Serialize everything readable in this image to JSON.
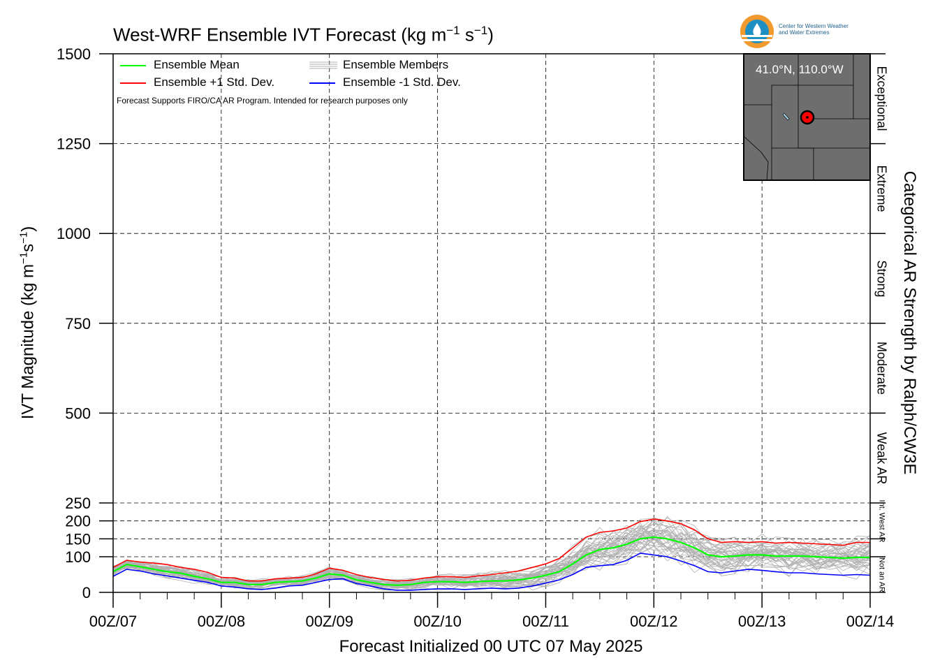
{
  "logo": {
    "name": "cw3e-logo-icon",
    "text_line1": "Center for Western Weather",
    "text_line2": "and Water Extremes"
  },
  "inset_map": {
    "location_label": "41.0°N, 110.0°W",
    "land_color": "#6e6e6e",
    "marker_color": "#ff0000"
  },
  "disclaimer": "Forecast Supports FIRO/CA AR Program. Intended for research purposes only",
  "categories": [
    {
      "label": "Exceptional",
      "range": [
        1250,
        1500
      ],
      "small": false
    },
    {
      "label": "Extreme",
      "range": [
        1000,
        1250
      ],
      "small": false
    },
    {
      "label": "Strong",
      "range": [
        750,
        1000
      ],
      "small": false
    },
    {
      "label": "Moderate",
      "range": [
        500,
        750
      ],
      "small": false
    },
    {
      "label": "Weak AR",
      "range": [
        250,
        500
      ],
      "small": false
    },
    {
      "label": "Int. West AR",
      "range": [
        150,
        250
      ],
      "small": true
    },
    {
      "label": "Not an AR",
      "range": [
        0,
        100
      ],
      "small": true
    }
  ],
  "chart_data": {
    "type": "line",
    "title": "West-WRF Ensemble IVT Forecast (kg m-1 s-1)",
    "title_main": "West-WRF Ensemble IVT Forecast (kg m",
    "title_exp1": "−1",
    "title_mid": " s",
    "title_exp2": "−1",
    "title_end": ")",
    "ylabel_main": "IVT Magnitude (kg m",
    "ylabel_exp1": "−1",
    "ylabel_mid": "s",
    "ylabel_exp2": "−1",
    "ylabel_end": ")",
    "xlabel": "Forecast Initialized 00 UTC 07 May 2025",
    "right_label": "Categorical AR Strength by Ralph/CW3E",
    "xlim": [
      0,
      168
    ],
    "ylim": [
      0,
      1500
    ],
    "grid": true,
    "legend_placement": "top-left",
    "x_ticks": [
      0,
      24,
      48,
      72,
      96,
      120,
      144,
      168
    ],
    "x_tick_labels": [
      "00Z/07",
      "00Z/08",
      "00Z/09",
      "00Z/10",
      "00Z/11",
      "00Z/12",
      "00Z/13",
      "00Z/14"
    ],
    "y_ticks": [
      0,
      100,
      150,
      200,
      250,
      500,
      750,
      1000,
      1250,
      1500
    ],
    "y_tick_labels": [
      "0",
      "100",
      "150",
      "200",
      "250",
      "500",
      "750",
      "1000",
      "1250",
      "1500"
    ],
    "x_hours": [
      0,
      3,
      6,
      9,
      12,
      15,
      18,
      21,
      24,
      27,
      30,
      33,
      36,
      39,
      42,
      45,
      48,
      51,
      54,
      57,
      60,
      63,
      66,
      69,
      72,
      75,
      78,
      81,
      84,
      87,
      90,
      93,
      96,
      99,
      102,
      105,
      108,
      111,
      114,
      117,
      120,
      123,
      126,
      129,
      132,
      135,
      138,
      141,
      144,
      147,
      150,
      153,
      156,
      159,
      162,
      165,
      168
    ],
    "series": [
      {
        "name": "Ensemble Mean",
        "color": "#00ff00",
        "values": [
          58,
          78,
          72,
          65,
          58,
          54,
          45,
          38,
          28,
          28,
          22,
          22,
          28,
          30,
          32,
          40,
          52,
          48,
          35,
          28,
          22,
          20,
          22,
          28,
          30,
          30,
          28,
          30,
          32,
          32,
          35,
          40,
          48,
          58,
          80,
          105,
          120,
          125,
          135,
          150,
          155,
          150,
          140,
          125,
          105,
          100,
          102,
          105,
          105,
          102,
          102,
          102,
          100,
          98,
          96,
          98,
          98
        ]
      },
      {
        "name": "Ensemble +1 Std. Dev.",
        "color": "#ff0000",
        "values": [
          70,
          90,
          85,
          82,
          78,
          70,
          65,
          56,
          42,
          40,
          32,
          32,
          38,
          40,
          42,
          52,
          68,
          62,
          50,
          42,
          36,
          32,
          34,
          40,
          44,
          44,
          42,
          46,
          50,
          55,
          60,
          70,
          80,
          95,
          125,
          155,
          168,
          172,
          180,
          198,
          205,
          200,
          192,
          175,
          150,
          140,
          142,
          140,
          142,
          138,
          140,
          138,
          136,
          134,
          132,
          140,
          140
        ]
      },
      {
        "name": "Ensemble -1 Std. Dev.",
        "color": "#0000ff",
        "values": [
          45,
          65,
          60,
          52,
          46,
          40,
          34,
          28,
          18,
          15,
          10,
          8,
          12,
          18,
          20,
          28,
          36,
          38,
          25,
          18,
          10,
          6,
          6,
          8,
          10,
          10,
          8,
          10,
          12,
          10,
          12,
          18,
          26,
          35,
          50,
          70,
          75,
          78,
          90,
          110,
          105,
          100,
          88,
          75,
          58,
          55,
          60,
          65,
          62,
          58,
          55,
          55,
          52,
          50,
          48,
          50,
          48
        ]
      }
    ],
    "members_label": "Ensemble Members",
    "members_color": "#b0b0b0",
    "members_count": 40
  }
}
